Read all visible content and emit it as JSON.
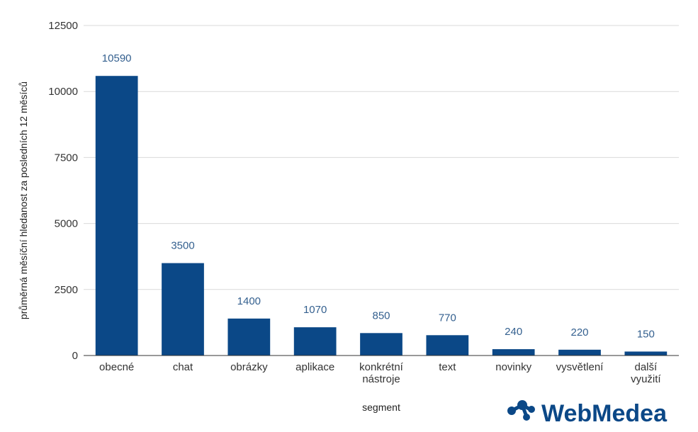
{
  "chart_data": {
    "type": "bar",
    "title": "",
    "xlabel": "segment",
    "ylabel": "průměrná měsíční hledanost za posledních 12 měsíců",
    "categories": [
      [
        "obecné"
      ],
      [
        "chat"
      ],
      [
        "obrázky"
      ],
      [
        "aplikace"
      ],
      [
        "konkrétní",
        "nástroje"
      ],
      [
        "text"
      ],
      [
        "novinky"
      ],
      [
        "vysvětlení"
      ],
      [
        "další",
        "využití"
      ]
    ],
    "values": [
      10590,
      3500,
      1400,
      1070,
      850,
      770,
      240,
      220,
      150
    ],
    "ylim": [
      0,
      12500
    ],
    "yticks": [
      0,
      2500,
      5000,
      7500,
      10000,
      12500
    ],
    "grid": true,
    "legend": "none",
    "colors": {
      "bar": "#0b4887",
      "data_label": "#34608f",
      "grid": "#d9d9d9",
      "axis": "#333333"
    }
  },
  "brand": {
    "logo_text": "WebMedea"
  }
}
